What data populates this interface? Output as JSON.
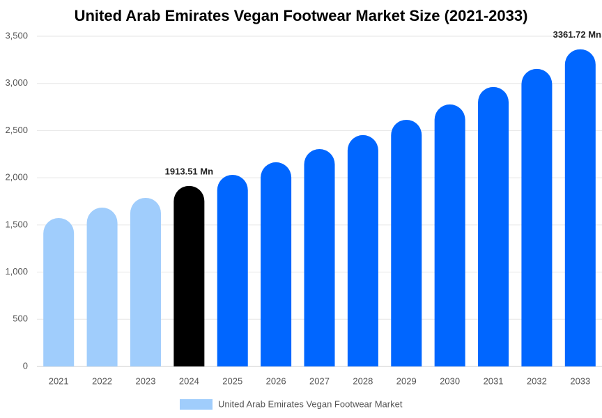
{
  "chart_data": {
    "type": "bar",
    "title": "United Arab Emirates Vegan Footwear Market Size (2021-2033)",
    "categories": [
      "2021",
      "2022",
      "2023",
      "2024",
      "2025",
      "2026",
      "2027",
      "2028",
      "2029",
      "2030",
      "2031",
      "2032",
      "2033"
    ],
    "series": [
      {
        "name": "United Arab Emirates Vegan Footwear Market",
        "color": "#a0cdfc",
        "values": [
          1573,
          1684,
          1787,
          1913.51,
          2031,
          2164,
          2304,
          2452,
          2614,
          2777,
          2962,
          3154,
          3361.72
        ],
        "value_labels": [
          null,
          null,
          null,
          "1913.51 Mn",
          null,
          null,
          null,
          null,
          null,
          null,
          null,
          null,
          "3361.72 Mn"
        ],
        "colors": [
          "#a0cdfc",
          "#a0cdfc",
          "#a0cdfc",
          "#000000",
          "#0066ff",
          "#0066ff",
          "#0066ff",
          "#0066ff",
          "#0066ff",
          "#0066ff",
          "#0066ff",
          "#0066ff",
          "#0066ff"
        ]
      }
    ],
    "ylim": [
      0,
      3500
    ],
    "yticks": [
      0,
      500,
      {
        "value": 1000,
        "label": "1,000"
      },
      {
        "value": 1500,
        "label": "1,500"
      },
      {
        "value": 2000,
        "label": "2,000"
      },
      {
        "value": 2500,
        "label": "2,500"
      },
      {
        "value": 3000,
        "label": "3,000"
      },
      {
        "value": 3500,
        "label": "3,500"
      }
    ],
    "grid": true,
    "legend": "bottom"
  }
}
